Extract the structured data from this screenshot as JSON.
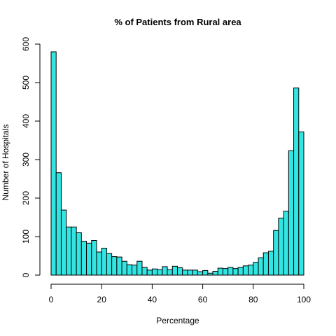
{
  "chart_data": {
    "type": "bar",
    "title": "% of Patients from Rural area",
    "xlabel": "Percentage",
    "ylabel": "Number of Hospitals",
    "bin_width": 2,
    "bins_start": 0,
    "xlim": [
      0,
      100
    ],
    "ylim": [
      0,
      600
    ],
    "x_ticks": [
      0,
      20,
      40,
      60,
      80,
      100
    ],
    "y_ticks": [
      0,
      100,
      200,
      300,
      400,
      500,
      600
    ],
    "values": [
      580,
      266,
      169,
      125,
      125,
      110,
      88,
      83,
      90,
      60,
      70,
      56,
      48,
      47,
      36,
      27,
      26,
      36,
      20,
      13,
      16,
      14,
      22,
      14,
      23,
      19,
      13,
      13,
      13,
      9,
      12,
      5,
      10,
      18,
      17,
      20,
      17,
      20,
      24,
      26,
      33,
      45,
      58,
      62,
      116,
      148,
      166,
      323,
      486,
      372
    ],
    "bar_color": "#33e5e2",
    "grid": false
  }
}
